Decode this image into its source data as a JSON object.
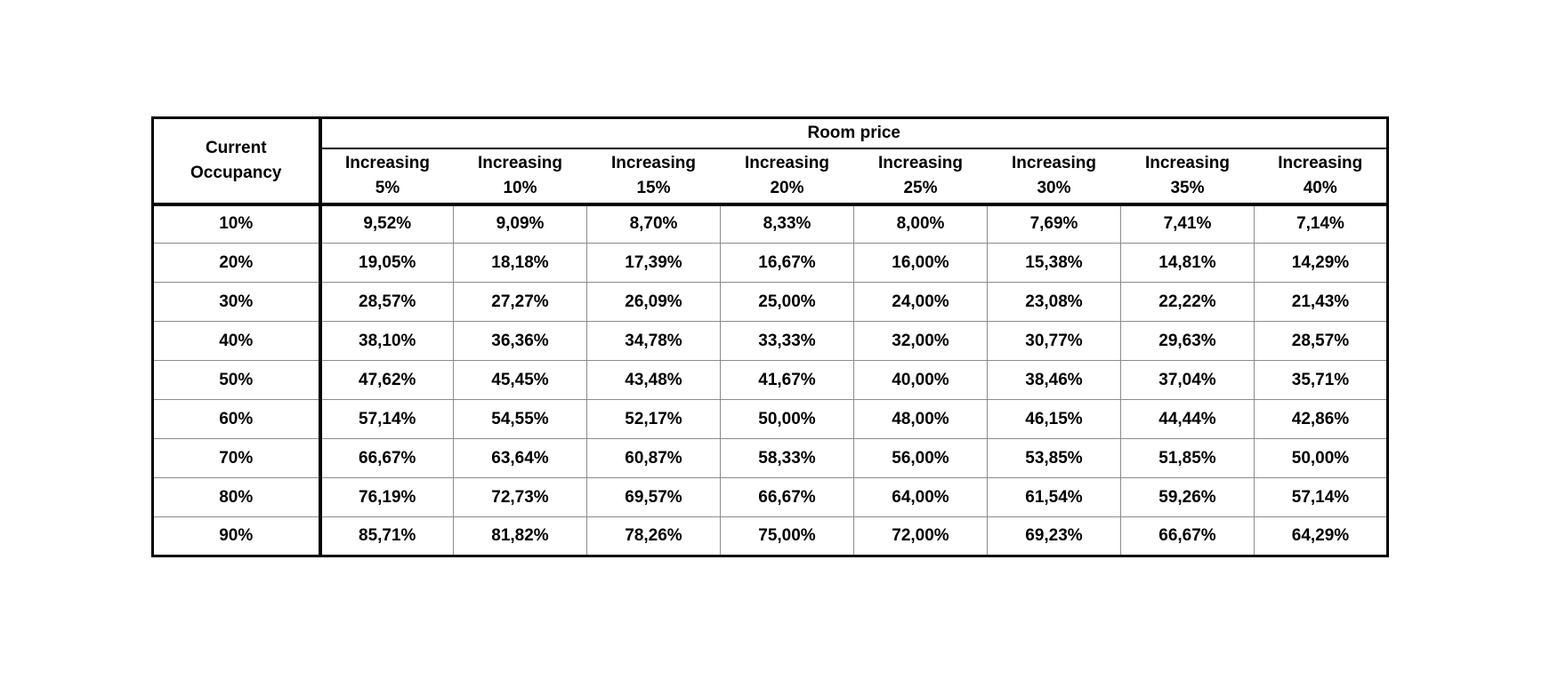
{
  "table": {
    "title": "Room price",
    "corner": {
      "line1": "Current",
      "line2": "Occupancy"
    },
    "col_headers": [
      {
        "label": "Increasing",
        "pct": "5%"
      },
      {
        "label": "Increasing",
        "pct": "10%"
      },
      {
        "label": "Increasing",
        "pct": "15%"
      },
      {
        "label": "Increasing",
        "pct": "20%"
      },
      {
        "label": "Increasing",
        "pct": "25%"
      },
      {
        "label": "Increasing",
        "pct": "30%"
      },
      {
        "label": "Increasing",
        "pct": "35%"
      },
      {
        "label": "Increasing",
        "pct": "40%"
      }
    ],
    "rows": [
      {
        "occupancy": "10%",
        "values": [
          "9,52%",
          "9,09%",
          "8,70%",
          "8,33%",
          "8,00%",
          "7,69%",
          "7,41%",
          "7,14%"
        ]
      },
      {
        "occupancy": "20%",
        "values": [
          "19,05%",
          "18,18%",
          "17,39%",
          "16,67%",
          "16,00%",
          "15,38%",
          "14,81%",
          "14,29%"
        ]
      },
      {
        "occupancy": "30%",
        "values": [
          "28,57%",
          "27,27%",
          "26,09%",
          "25,00%",
          "24,00%",
          "23,08%",
          "22,22%",
          "21,43%"
        ]
      },
      {
        "occupancy": "40%",
        "values": [
          "38,10%",
          "36,36%",
          "34,78%",
          "33,33%",
          "32,00%",
          "30,77%",
          "29,63%",
          "28,57%"
        ]
      },
      {
        "occupancy": "50%",
        "values": [
          "47,62%",
          "45,45%",
          "43,48%",
          "41,67%",
          "40,00%",
          "38,46%",
          "37,04%",
          "35,71%"
        ]
      },
      {
        "occupancy": "60%",
        "values": [
          "57,14%",
          "54,55%",
          "52,17%",
          "50,00%",
          "48,00%",
          "46,15%",
          "44,44%",
          "42,86%"
        ]
      },
      {
        "occupancy": "70%",
        "values": [
          "66,67%",
          "63,64%",
          "60,87%",
          "58,33%",
          "56,00%",
          "53,85%",
          "51,85%",
          "50,00%"
        ]
      },
      {
        "occupancy": "80%",
        "values": [
          "76,19%",
          "72,73%",
          "69,57%",
          "66,67%",
          "64,00%",
          "61,54%",
          "59,26%",
          "57,14%"
        ]
      },
      {
        "occupancy": "90%",
        "values": [
          "85,71%",
          "81,82%",
          "78,26%",
          "75,00%",
          "72,00%",
          "69,23%",
          "66,67%",
          "64,29%"
        ]
      }
    ],
    "colors": {
      "text": "#000000",
      "outer_border": "#000000",
      "grid_line": "#8c8c8c",
      "background": "#ffffff"
    }
  }
}
